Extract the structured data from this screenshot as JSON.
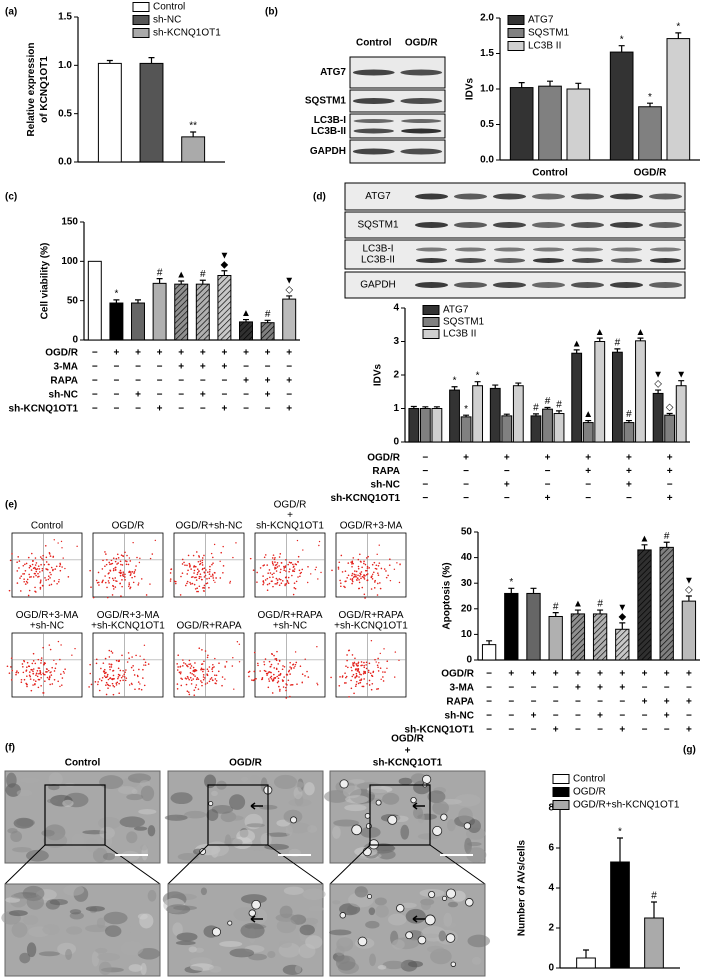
{
  "chart_data": [
    {
      "type": "bar",
      "label": "(a)",
      "ylabel": [
        "Relative expression",
        "of KCNQ1OT1"
      ],
      "categories": [
        null
      ],
      "series": [
        {
          "name": "Control",
          "color": "#ffffff",
          "values": [
            1.02
          ],
          "errors": [
            0.03
          ]
        },
        {
          "name": "sh-NC",
          "color": "#555555",
          "values": [
            1.02
          ],
          "errors": [
            0.06
          ]
        },
        {
          "name": "sh-KCNQ1OT1",
          "color": "#aaaaaa",
          "values": [
            0.26
          ],
          "errors": [
            0.05
          ],
          "annotations": [
            [
              "**"
            ]
          ]
        }
      ],
      "ylim": [
        0,
        1.5
      ],
      "yticks": [
        {
          "value": 0,
          "label": "0.0"
        },
        0.5,
        {
          "value": 1,
          "label": "1.0"
        },
        1.5
      ]
    },
    {
      "type": "bar",
      "label": "(b)",
      "ylabel": [
        "IDVs"
      ],
      "categories": [
        "Control",
        "OGD/R"
      ],
      "series": [
        {
          "name": "ATG7",
          "color": "#333333",
          "values": [
            1.02,
            1.52
          ],
          "errors": [
            0.07,
            0.09
          ],
          "annotations": [
            null,
            [
              "*"
            ]
          ]
        },
        {
          "name": "SQSTM1",
          "color": "#808080",
          "values": [
            1.04,
            0.75
          ],
          "errors": [
            0.07,
            0.05
          ],
          "annotations": [
            null,
            [
              "*"
            ]
          ]
        },
        {
          "name": "LC3B II",
          "color": "#d0d0d0",
          "values": [
            1.0,
            1.71
          ],
          "errors": [
            0.08,
            0.08
          ],
          "annotations": [
            null,
            [
              "*"
            ]
          ]
        }
      ],
      "ylim": [
        0,
        2
      ],
      "yticks": [
        {
          "value": 0,
          "label": "0.0"
        },
        0.5,
        {
          "value": 1,
          "label": "1.0"
        },
        1.5,
        {
          "value": 2,
          "label": "2.0"
        }
      ]
    },
    {
      "type": "bar",
      "label": "(c)",
      "ylabel": [
        "Cell viability (%)"
      ],
      "values": [
        100,
        47,
        47,
        72,
        71,
        71,
        82,
        23,
        22,
        52
      ],
      "errors": [
        null,
        4,
        4,
        6,
        4,
        5,
        6,
        3,
        3,
        4
      ],
      "colors": [
        "#ffffff",
        "#000000",
        "#666666",
        "#b0b0b0",
        "#909090",
        "#b0b0b0",
        "#c8c8c8",
        "#303030",
        "#808080",
        "#bbbbbb"
      ],
      "hatch": [
        false,
        false,
        false,
        false,
        true,
        true,
        true,
        true,
        true,
        false
      ],
      "annotations": [
        null,
        [
          "*"
        ],
        null,
        [
          "#"
        ],
        [
          "▲"
        ],
        [
          "#"
        ],
        [
          "▼",
          "◆"
        ],
        [
          "▲"
        ],
        [
          "#"
        ],
        [
          "▼",
          "◇"
        ]
      ],
      "ylim": [
        0,
        150
      ],
      "yticks": [
        0,
        50,
        100,
        150
      ],
      "conditions": [
        {
          "label": "OGD/R",
          "signs": [
            "−",
            "+",
            "+",
            "+",
            "+",
            "+",
            "+",
            "+",
            "+",
            "+"
          ]
        },
        {
          "label": "3-MA",
          "signs": [
            "−",
            "−",
            "−",
            "−",
            "+",
            "+",
            "+",
            "−",
            "−",
            "−"
          ]
        },
        {
          "label": "RAPA",
          "signs": [
            "−",
            "−",
            "−",
            "−",
            "−",
            "−",
            "−",
            "+",
            "+",
            "+"
          ]
        },
        {
          "label": "sh-NC",
          "signs": [
            "−",
            "−",
            "+",
            "−",
            "−",
            "+",
            "−",
            "−",
            "+",
            "−"
          ]
        },
        {
          "label": "sh-KCNQ1OT1",
          "signs": [
            "−",
            "−",
            "−",
            "+",
            "−",
            "−",
            "+",
            "−",
            "−",
            "+"
          ]
        }
      ]
    },
    {
      "type": "bar",
      "label": "(d)",
      "ylabel": [
        "IDVs"
      ],
      "categories": [
        null,
        null,
        null,
        null,
        null,
        null,
        null
      ],
      "series": [
        {
          "name": "ATG7",
          "color": "#333333",
          "values": [
            1.0,
            1.55,
            1.6,
            0.78,
            2.65,
            2.68,
            1.45
          ],
          "errors": [
            0.06,
            0.1,
            0.1,
            0.06,
            0.1,
            0.1,
            0.1
          ],
          "annotations": [
            null,
            [
              "*"
            ],
            null,
            [
              "#"
            ],
            [
              "▲"
            ],
            [
              "#"
            ],
            [
              "▼",
              "◇"
            ]
          ]
        },
        {
          "name": "SQSTM1",
          "color": "#808080",
          "values": [
            1.0,
            0.75,
            0.78,
            0.98,
            0.58,
            0.58,
            0.8
          ],
          "errors": [
            0.05,
            0.05,
            0.05,
            0.05,
            0.06,
            0.06,
            0.05
          ],
          "annotations": [
            null,
            [
              "*"
            ],
            null,
            [
              "#"
            ],
            [
              "▲"
            ],
            [
              "#"
            ],
            [
              "◇"
            ]
          ]
        },
        {
          "name": "LC3B II",
          "color": "#d0d0d0",
          "values": [
            1.0,
            1.68,
            1.68,
            0.85,
            3.0,
            3.02,
            1.68
          ],
          "errors": [
            0.05,
            0.12,
            0.08,
            0.08,
            0.1,
            0.08,
            0.15
          ],
          "annotations": [
            null,
            [
              "*"
            ],
            null,
            [
              "#"
            ],
            [
              "▲"
            ],
            [
              "▲"
            ],
            [
              "▼"
            ]
          ]
        }
      ],
      "ylim": [
        0,
        4
      ],
      "yticks": [
        0,
        1,
        2,
        3,
        4
      ],
      "conditions": [
        {
          "label": "OGD/R",
          "signs": [
            "−",
            "+",
            "+",
            "+",
            "+",
            "+",
            "+"
          ]
        },
        {
          "label": "RAPA",
          "signs": [
            "−",
            "−",
            "−",
            "−",
            "+",
            "+",
            "+"
          ]
        },
        {
          "label": "sh-NC",
          "signs": [
            "−",
            "−",
            "+",
            "−",
            "−",
            "+",
            "−"
          ]
        },
        {
          "label": "sh-KCNQ1OT1",
          "signs": [
            "−",
            "−",
            "−",
            "+",
            "−",
            "−",
            "+"
          ]
        }
      ]
    },
    {
      "type": "bar",
      "ylabel": [
        "Apoptosis (%)"
      ],
      "values": [
        6,
        26,
        26,
        17,
        18,
        18,
        12,
        43,
        44,
        23
      ],
      "errors": [
        1.5,
        2,
        2,
        1.5,
        1.5,
        1.5,
        2.5,
        2,
        2,
        2
      ],
      "colors": [
        "#ffffff",
        "#000000",
        "#666666",
        "#b0b0b0",
        "#909090",
        "#b0b0b0",
        "#c8c8c8",
        "#303030",
        "#808080",
        "#bbbbbb"
      ],
      "hatch": [
        false,
        false,
        false,
        false,
        true,
        true,
        true,
        true,
        true,
        false
      ],
      "annotations": [
        null,
        [
          "*"
        ],
        null,
        [
          "#"
        ],
        [
          "▲"
        ],
        [
          "#"
        ],
        [
          "▼",
          "◆"
        ],
        [
          "▲"
        ],
        [
          "#"
        ],
        [
          "▼",
          "◇"
        ]
      ],
      "ylim": [
        0,
        50
      ],
      "yticks": [
        0,
        10,
        20,
        30,
        40,
        50
      ],
      "conditions": [
        {
          "label": "OGD/R",
          "signs": [
            "−",
            "+",
            "+",
            "+",
            "+",
            "+",
            "+",
            "+",
            "+",
            "+"
          ]
        },
        {
          "label": "3-MA",
          "signs": [
            "−",
            "−",
            "−",
            "−",
            "+",
            "+",
            "+",
            "−",
            "−",
            "−"
          ]
        },
        {
          "label": "RAPA",
          "signs": [
            "−",
            "−",
            "−",
            "−",
            "−",
            "−",
            "−",
            "+",
            "+",
            "+"
          ]
        },
        {
          "label": "sh-NC",
          "signs": [
            "−",
            "−",
            "+",
            "−",
            "−",
            "+",
            "−",
            "−",
            "+",
            "−"
          ]
        },
        {
          "label": "sh-KCNQ1OT1",
          "signs": [
            "−",
            "−",
            "−",
            "+",
            "−",
            "−",
            "+",
            "−",
            "−",
            "+"
          ]
        }
      ]
    },
    {
      "type": "bar",
      "label": "(g)",
      "ylabel": [
        "Number of AVs/cells"
      ],
      "categories": [
        null
      ],
      "series": [
        {
          "name": "Control",
          "color": "#ffffff",
          "values": [
            0.5
          ],
          "errors": [
            0.4
          ]
        },
        {
          "name": "OGD/R",
          "color": "#000000",
          "values": [
            5.3
          ],
          "errors": [
            1.2
          ],
          "annotations": [
            [
              "*"
            ]
          ]
        },
        {
          "name": "OGD/R+sh-KCNQ1OT1",
          "color": "#aaaaaa",
          "values": [
            2.5
          ],
          "errors": [
            0.8
          ],
          "annotations": [
            [
              "#"
            ]
          ]
        }
      ],
      "ylim": [
        0,
        8
      ],
      "yticks": [
        0,
        2,
        4,
        6,
        8
      ]
    }
  ],
  "blots": [
    {
      "lanes": [
        "Control",
        "OGD/R"
      ],
      "rows": [
        "ATG7",
        "SQSTM1",
        [
          "LC3B-I",
          "LC3B-II"
        ],
        "GAPDH"
      ]
    },
    {
      "rows": [
        "ATG7",
        "SQSTM1",
        [
          "LC3B-I",
          "LC3B-II"
        ],
        "GAPDH"
      ]
    }
  ],
  "flow": {
    "label": "(e)",
    "plots": [
      [
        "Control"
      ],
      [
        "OGD/R"
      ],
      [
        "OGD/R+sh-NC"
      ],
      [
        "OGD/R",
        "+",
        "sh-KCNQ1OT1"
      ],
      [
        "OGD/R+3-MA"
      ],
      [
        "OGD/R+3-MA",
        "+sh-NC"
      ],
      [
        "OGD/R+3-MA",
        "+sh-KCNQ1OT1"
      ],
      [
        "OGD/R+RAPA"
      ],
      [
        "OGD/R+RAPA",
        "+sh-NC"
      ],
      [
        "OGD/R+RAPA",
        "+sh-KCNQ1OT1"
      ]
    ]
  },
  "micrographs": {
    "label": "(f)",
    "titles": [
      [
        "Control"
      ],
      [
        "OGD/R"
      ],
      [
        "OGD/R",
        "+",
        "sh-KCNQ1OT1"
      ]
    ]
  }
}
